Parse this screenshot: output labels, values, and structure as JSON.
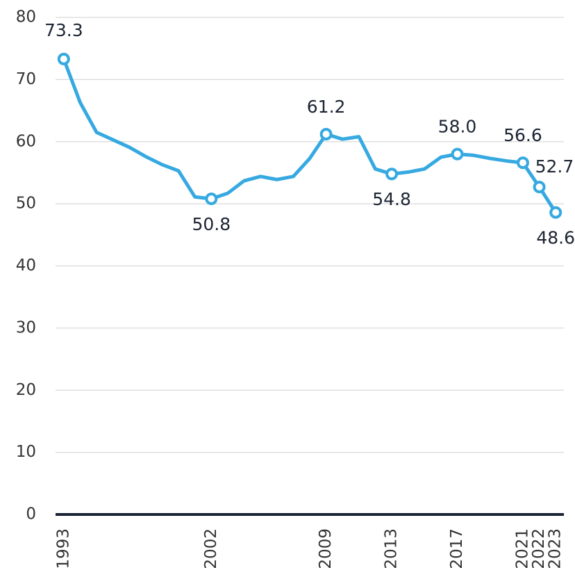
{
  "chart_data": {
    "type": "line",
    "x": [
      1993,
      1994,
      1995,
      1996,
      1997,
      1998,
      1999,
      2000,
      2001,
      2002,
      2003,
      2004,
      2005,
      2006,
      2007,
      2008,
      2009,
      2010,
      2011,
      2012,
      2013,
      2014,
      2015,
      2016,
      2017,
      2018,
      2019,
      2020,
      2021,
      2022,
      2023
    ],
    "series": [
      {
        "color": "#36a9e1",
        "values": [
          73.3,
          66.3,
          61.5,
          60.3,
          59.1,
          57.6,
          56.3,
          55.3,
          51.1,
          50.8,
          51.7,
          53.7,
          54.4,
          53.9,
          54.4,
          57.3,
          61.2,
          60.4,
          60.8,
          55.6,
          54.8,
          55.1,
          55.6,
          57.5,
          58.0,
          57.8,
          57.3,
          56.9,
          56.6,
          52.7,
          48.6
        ],
        "value_labels": [
          "73.3",
          null,
          null,
          null,
          null,
          null,
          null,
          null,
          null,
          "50.8",
          null,
          null,
          null,
          null,
          null,
          null,
          "61.2",
          null,
          null,
          null,
          "54.8",
          null,
          null,
          null,
          "58.0",
          null,
          null,
          null,
          "56.6",
          "52.7",
          "48.6"
        ]
      }
    ],
    "xlim": [
      1992.5,
      2023.5
    ],
    "xticks": [
      1993,
      2002,
      2009,
      2013,
      2017,
      2021,
      2022,
      2023
    ],
    "ylim": [
      0,
      80
    ],
    "yticks": [
      0,
      10,
      20,
      30,
      40,
      50,
      60,
      70,
      80
    ],
    "grid": true
  }
}
